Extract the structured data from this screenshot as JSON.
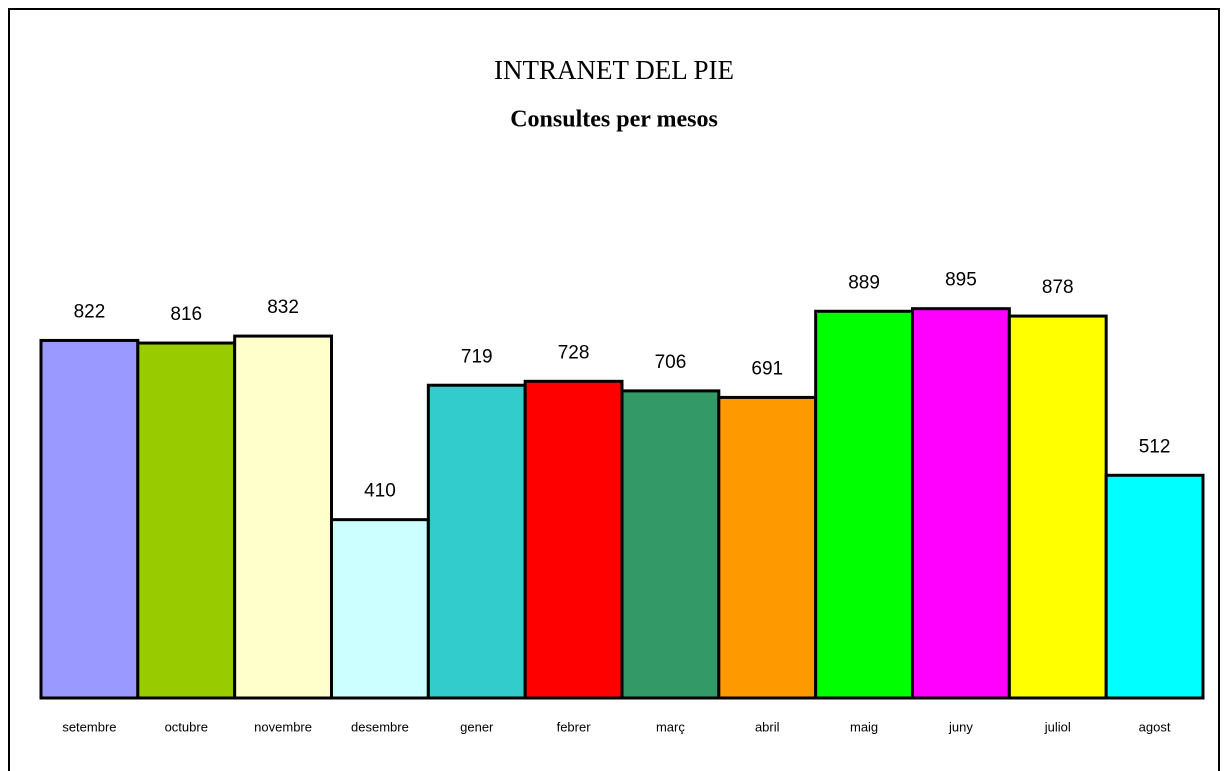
{
  "chart_data": {
    "type": "bar",
    "title": "INTRANET DEL PIE",
    "subtitle": "Consultes per mesos",
    "categories": [
      "setembre",
      "octubre",
      "novembre",
      "desembre",
      "gener",
      "febrer",
      "març",
      "abril",
      "maig",
      "juny",
      "juliol",
      "agost"
    ],
    "values": [
      822,
      816,
      832,
      410,
      719,
      728,
      706,
      691,
      889,
      895,
      878,
      512
    ],
    "colors": [
      "#9999ff",
      "#99cc00",
      "#ffffcc",
      "#ccffff",
      "#33cccc",
      "#ff0000",
      "#339966",
      "#ff9900",
      "#00ff00",
      "#ff00ff",
      "#ffff00",
      "#00ffff"
    ],
    "ylim": [
      0,
      1000
    ]
  }
}
